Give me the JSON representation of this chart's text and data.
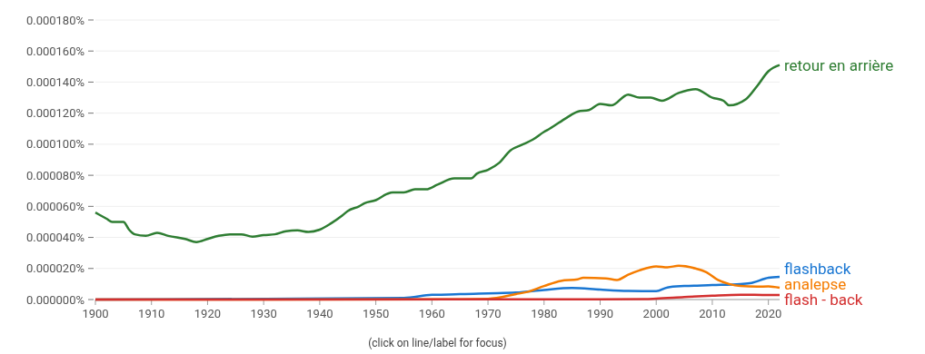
{
  "chart_data": {
    "type": "line",
    "xlim": [
      1900,
      2022
    ],
    "xticks": [
      1900,
      1910,
      1920,
      1930,
      1940,
      1950,
      1960,
      1970,
      1980,
      1990,
      2000,
      2010,
      2020
    ],
    "ylim": [
      0,
      0.00018
    ],
    "yticks": [
      {
        "value": 0,
        "label": "0.000000%"
      },
      {
        "value": 2e-05,
        "label": "0.000020%"
      },
      {
        "value": 4e-05,
        "label": "0.000040%"
      },
      {
        "value": 6e-05,
        "label": "0.000060%"
      },
      {
        "value": 8e-05,
        "label": "0.000080%"
      },
      {
        "value": 0.0001,
        "label": "0.000100%"
      },
      {
        "value": 0.00012,
        "label": "0.000120%"
      },
      {
        "value": 0.00014,
        "label": "0.000140%"
      },
      {
        "value": 0.00016,
        "label": "0.000160%"
      },
      {
        "value": 0.00018,
        "label": "0.000180%"
      }
    ],
    "grid": "y",
    "legend": false,
    "marker": "none",
    "line_style": "solid",
    "annotations": [
      "(click on line/label for focus)"
    ],
    "series": [
      {
        "name": "retour en arrière",
        "color": "#2e7d32",
        "x": [
          1900,
          1902,
          1903,
          1905,
          1906,
          1907,
          1909,
          1911,
          1913,
          1916,
          1918,
          1920,
          1922,
          1924,
          1926,
          1928,
          1930,
          1932,
          1934,
          1936,
          1938,
          1940,
          1942,
          1944,
          1945,
          1947,
          1948,
          1950,
          1952,
          1953,
          1955,
          1957,
          1959,
          1961,
          1964,
          1967,
          1968,
          1970,
          1972,
          1974,
          1976,
          1978,
          1980,
          1981,
          1984,
          1986,
          1988,
          1990,
          1992,
          1995,
          1997,
          1999,
          2001,
          2004,
          2007,
          2010,
          2012,
          2013,
          2016,
          2018,
          2020,
          2022
        ],
        "values": [
          5.6e-05,
          5.2e-05,
          5e-05,
          5e-05,
          4.5e-05,
          4.2e-05,
          4.1e-05,
          4.3e-05,
          4.1e-05,
          3.9e-05,
          3.7e-05,
          3.9e-05,
          4.1e-05,
          4.2e-05,
          4.2e-05,
          4.05e-05,
          4.15e-05,
          4.2e-05,
          4.4e-05,
          4.45e-05,
          4.35e-05,
          4.5e-05,
          4.9e-05,
          5.4e-05,
          5.7e-05,
          6e-05,
          6.2e-05,
          6.4e-05,
          6.8e-05,
          6.9e-05,
          6.9e-05,
          7.1e-05,
          7.1e-05,
          7.4e-05,
          7.8e-05,
          7.8e-05,
          8.1e-05,
          8.35e-05,
          8.8e-05,
          9.6e-05,
          9.95e-05,
          0.000103,
          0.000108,
          0.00011,
          0.000117,
          0.000121,
          0.000122,
          0.000126,
          0.000125,
          0.000132,
          0.00013,
          0.00013,
          0.000128,
          0.000133,
          0.0001355,
          0.00013,
          0.000128,
          0.000125,
          0.000129,
          0.0001375,
          0.000147,
          0.000151
        ]
      },
      {
        "name": "flashback",
        "color": "#1976d2",
        "x": [
          1900,
          1955,
          1960,
          1963,
          1965,
          1970,
          1975,
          1980,
          1985,
          1990,
          1995,
          2000,
          2002,
          2005,
          2010,
          2015,
          2017,
          2020,
          2022
        ],
        "values": [
          0,
          1e-06,
          3e-06,
          3.2e-06,
          3.5e-06,
          4e-06,
          4.5e-06,
          6.2e-06,
          7.4e-06,
          6.4e-06,
          5.6e-06,
          5.4e-06,
          7.8e-06,
          8.7e-06,
          9.3e-06,
          1e-05,
          1.07e-05,
          1.4e-05,
          1.46e-05
        ]
      },
      {
        "name": "analepse",
        "color": "#f57c00",
        "x": [
          1900,
          1965,
          1970,
          1975,
          1977,
          1980,
          1983,
          1986,
          1987,
          1991,
          1993,
          1995,
          1997,
          2000,
          2002,
          2004,
          2007,
          2009,
          2011,
          2013,
          2015,
          2018,
          2020,
          2022
        ],
        "values": [
          0,
          2e-07,
          5e-07,
          3.5e-06,
          4.9e-06,
          8.7e-06,
          1.2e-05,
          1.3e-05,
          1.4e-05,
          1.36e-05,
          1.26e-05,
          1.6e-05,
          1.88e-05,
          2.14e-05,
          2.08e-05,
          2.17e-05,
          2e-05,
          1.75e-05,
          1.26e-05,
          1e-05,
          8.7e-06,
          8.3e-06,
          8.5e-06,
          7.6e-06
        ]
      },
      {
        "name": "flash - back",
        "color": "#d32f2f",
        "x": [
          1900,
          1990,
          1998,
          2000,
          2005,
          2010,
          2015,
          2020,
          2022
        ],
        "values": [
          0,
          2e-07,
          3e-07,
          6e-07,
          1.6e-06,
          2.5e-06,
          3.1e-06,
          2.9e-06,
          2.9e-06
        ]
      }
    ]
  }
}
